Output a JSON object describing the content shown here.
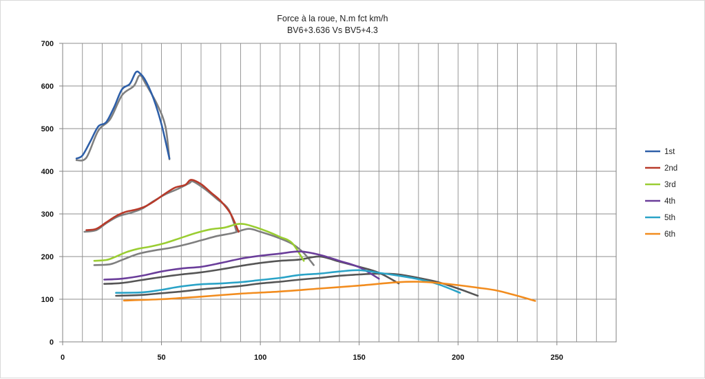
{
  "chart_data": {
    "type": "line",
    "title": "Force à la roue, N.m fct km/h",
    "subtitle": "BV6+3.636 Vs BV5+4.3",
    "xlabel": "",
    "ylabel": "",
    "xlim": [
      0,
      280
    ],
    "ylim": [
      0,
      700
    ],
    "x_ticks": [
      "0",
      "50",
      "100",
      "150",
      "200",
      "250"
    ],
    "y_ticks": [
      "0",
      "100",
      "200",
      "300",
      "400",
      "500",
      "600",
      "700"
    ],
    "grid": true,
    "legend_position": "right",
    "series": [
      {
        "name": "1st",
        "color": "#2e5fa8",
        "x": [
          7,
          10,
          14,
          18,
          22,
          26,
          30,
          34,
          37,
          39,
          42,
          46,
          50,
          54
        ],
        "y": [
          430,
          437,
          470,
          505,
          515,
          550,
          592,
          605,
          632,
          630,
          612,
          570,
          510,
          430
        ]
      },
      {
        "name": "2nd",
        "color": "#b83a2a",
        "x": [
          12,
          17,
          22,
          27,
          32,
          37,
          42,
          47,
          52,
          57,
          62,
          65,
          70,
          75,
          80,
          85,
          89
        ],
        "y": [
          262,
          265,
          280,
          295,
          305,
          310,
          318,
          332,
          348,
          362,
          368,
          380,
          370,
          350,
          330,
          300,
          258
        ]
      },
      {
        "name": "3rd",
        "color": "#9acd32",
        "x": [
          16,
          22,
          26,
          32,
          38,
          45,
          52,
          60,
          68,
          75,
          82,
          88,
          92,
          98,
          104,
          110,
          116,
          122
        ],
        "y": [
          190,
          192,
          198,
          210,
          218,
          224,
          232,
          244,
          256,
          264,
          268,
          276,
          276,
          268,
          258,
          246,
          232,
          190
        ]
      },
      {
        "name": "4th",
        "color": "#6a3d9a",
        "x": [
          21,
          30,
          40,
          50,
          60,
          70,
          80,
          90,
          100,
          110,
          120,
          130,
          140,
          150,
          160
        ],
        "y": [
          146,
          148,
          155,
          165,
          172,
          176,
          185,
          195,
          202,
          207,
          212,
          204,
          190,
          175,
          148
        ]
      },
      {
        "name": "5th",
        "color": "#2aa3c7",
        "x": [
          27,
          40,
          50,
          60,
          70,
          80,
          90,
          100,
          110,
          120,
          130,
          140,
          150,
          160,
          170,
          180,
          190,
          201
        ],
        "y": [
          115,
          116,
          122,
          130,
          135,
          137,
          140,
          145,
          150,
          157,
          160,
          165,
          168,
          162,
          155,
          147,
          135,
          115
        ]
      },
      {
        "name": "6th",
        "color": "#f28c1e",
        "x": [
          31,
          50,
          70,
          90,
          110,
          130,
          150,
          170,
          180,
          190,
          200,
          210,
          220,
          230,
          239
        ],
        "y": [
          97,
          100,
          106,
          113,
          118,
          125,
          132,
          140,
          141,
          138,
          133,
          127,
          120,
          108,
          96
        ]
      },
      {
        "name": "",
        "color": "#7f7f7f",
        "x": [
          7,
          12,
          18,
          24,
          30,
          36,
          39,
          42,
          48,
          52,
          54
        ],
        "y": [
          426,
          432,
          495,
          522,
          578,
          600,
          625,
          605,
          555,
          505,
          428
        ]
      },
      {
        "name": "",
        "color": "#7f7f7f",
        "x": [
          11,
          17,
          22,
          28,
          34,
          40,
          46,
          52,
          58,
          64,
          66,
          72,
          78,
          84,
          88
        ],
        "y": [
          258,
          262,
          278,
          294,
          302,
          312,
          330,
          346,
          358,
          372,
          376,
          358,
          335,
          310,
          258
        ]
      },
      {
        "name": "",
        "color": "#7f7f7f",
        "x": [
          16,
          24,
          30,
          38,
          46,
          54,
          62,
          70,
          78,
          86,
          94,
          100,
          108,
          116,
          122,
          127
        ],
        "y": [
          180,
          182,
          192,
          206,
          214,
          220,
          228,
          238,
          248,
          255,
          265,
          258,
          246,
          230,
          208,
          180
        ]
      },
      {
        "name": "",
        "color": "#555555",
        "x": [
          21,
          30,
          40,
          50,
          60,
          70,
          80,
          90,
          100,
          110,
          120,
          130,
          140,
          150,
          160,
          170
        ],
        "y": [
          136,
          138,
          145,
          152,
          158,
          163,
          170,
          178,
          185,
          190,
          193,
          200,
          188,
          176,
          162,
          137
        ]
      },
      {
        "name": "",
        "color": "#555555",
        "x": [
          27,
          40,
          50,
          60,
          70,
          80,
          90,
          100,
          110,
          120,
          130,
          140,
          150,
          160,
          170,
          180,
          190,
          200,
          210
        ],
        "y": [
          108,
          110,
          114,
          118,
          123,
          127,
          131,
          137,
          141,
          146,
          150,
          155,
          158,
          160,
          158,
          150,
          140,
          125,
          108
        ]
      }
    ]
  }
}
